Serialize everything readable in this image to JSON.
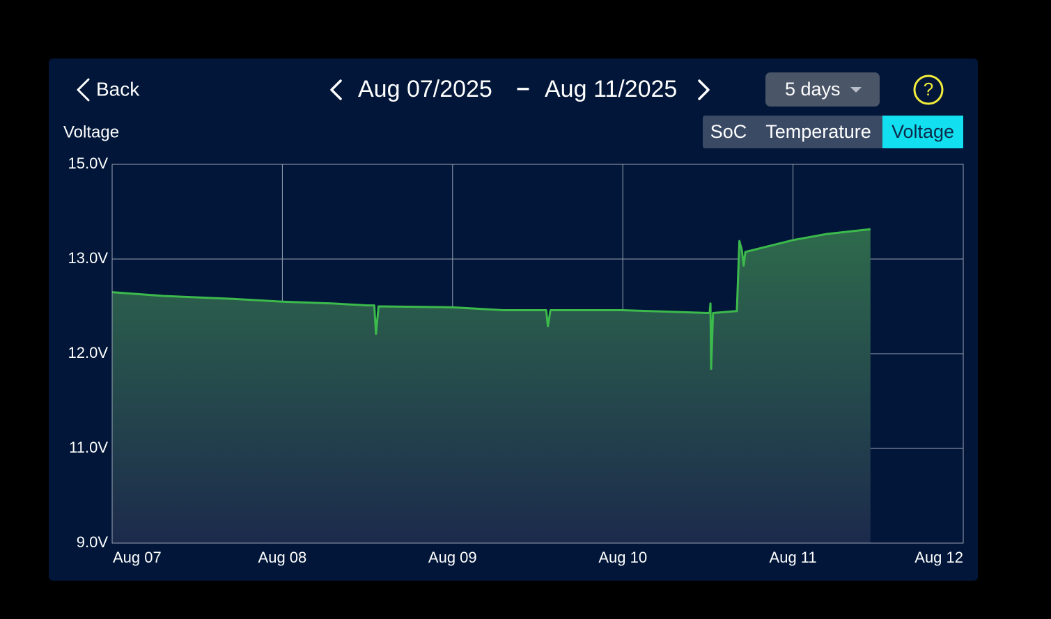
{
  "header": {
    "back": "Back",
    "start_date": "Aug 07/2025",
    "separator": "–",
    "end_date": "Aug 11/2025",
    "range": "5 days",
    "help": "?"
  },
  "tabs": [
    "SoC",
    "Temperature",
    "Voltage"
  ],
  "chart_data": {
    "type": "area",
    "title": "Voltage",
    "color": "#3cba4c",
    "grid": true,
    "x": [
      0,
      0.3,
      0.7,
      1.0,
      1.3,
      1.5,
      1.54,
      1.55,
      1.565,
      2.0,
      2.3,
      2.55,
      2.56,
      2.575,
      3.0,
      3.5,
      3.51,
      3.515,
      3.519,
      3.53,
      3.67,
      3.685,
      3.7,
      3.71,
      3.72,
      4.0,
      4.2,
      4.455
    ],
    "values": [
      12.65,
      12.61,
      12.58,
      12.55,
      12.53,
      12.51,
      12.51,
      12.21,
      12.5,
      12.49,
      12.46,
      12.46,
      12.29,
      12.46,
      12.46,
      12.43,
      12.43,
      12.53,
      11.84,
      12.43,
      12.45,
      13.38,
      13.18,
      12.93,
      13.15,
      13.4,
      13.53,
      13.63
    ],
    "xlim": [
      0,
      5
    ],
    "xticks": [
      {
        "value": 0,
        "label": "Aug 07"
      },
      {
        "value": 1,
        "label": "Aug 08"
      },
      {
        "value": 2,
        "label": "Aug 09"
      },
      {
        "value": 3,
        "label": "Aug 10"
      },
      {
        "value": 4,
        "label": "Aug 11"
      },
      {
        "value": 5,
        "label": "Aug 12"
      }
    ],
    "ylim": [
      9,
      15
    ],
    "yticks": [
      {
        "value": 9,
        "label": "9.0V"
      },
      {
        "value": 11,
        "label": "11.0V"
      },
      {
        "value": 12,
        "label": "12.0V"
      },
      {
        "value": 13,
        "label": "13.0V"
      },
      {
        "value": 15,
        "label": "15.0V"
      }
    ]
  }
}
